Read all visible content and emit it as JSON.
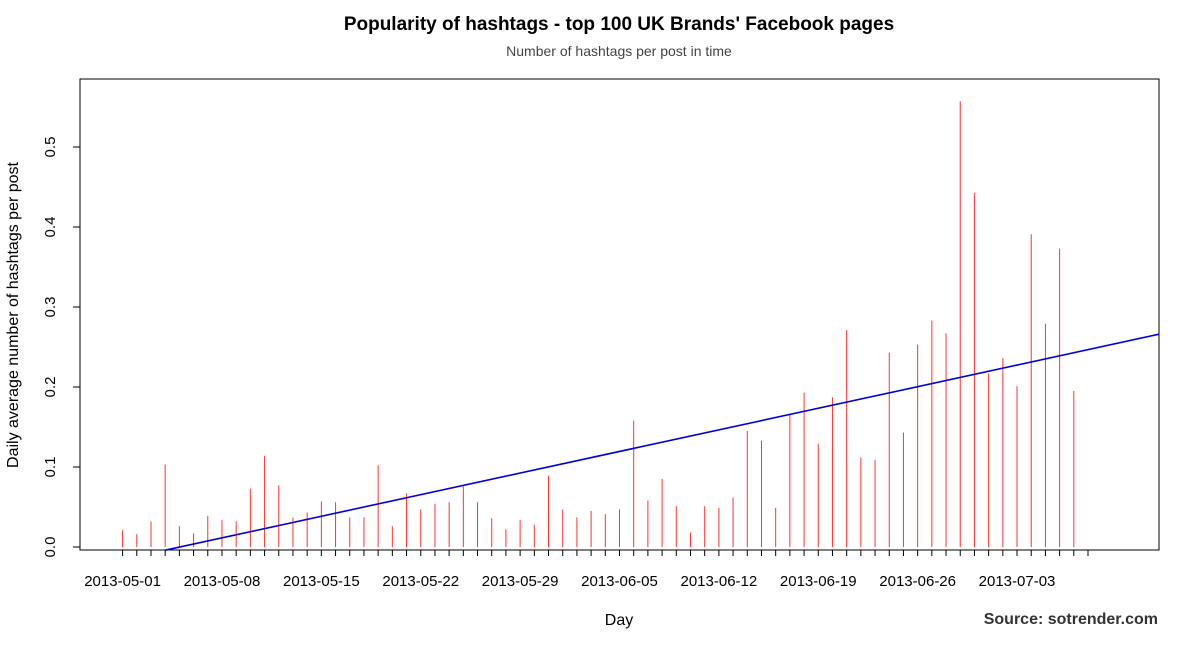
{
  "chart_data": {
    "type": "bar",
    "title": "Popularity of hashtags - top 100 UK Brands' Facebook pages",
    "subtitle": "Number of hashtags per post in time",
    "xlabel": "Day",
    "ylabel": "Daily average number of hashtags per post",
    "source": "Source: sotrender.com",
    "x_tick_labels": [
      "2013-05-01",
      "2013-05-08",
      "2013-05-15",
      "2013-05-22",
      "2013-05-29",
      "2013-06-05",
      "2013-06-12",
      "2013-06-19",
      "2013-06-26",
      "2013-07-03"
    ],
    "y_tick_labels": [
      "0.0",
      "0.1",
      "0.2",
      "0.3",
      "0.4",
      "0.5"
    ],
    "y_ticks": [
      0,
      0.1,
      0.2,
      0.3,
      0.4,
      0.5
    ],
    "ylim": [
      0,
      0.58
    ],
    "xlim": [
      "2013-04-28",
      "2013-07-13"
    ],
    "x": [
      "2013-05-01",
      "2013-05-02",
      "2013-05-03",
      "2013-05-04",
      "2013-05-05",
      "2013-05-06",
      "2013-05-07",
      "2013-05-08",
      "2013-05-09",
      "2013-05-10",
      "2013-05-11",
      "2013-05-12",
      "2013-05-13",
      "2013-05-14",
      "2013-05-15",
      "2013-05-16",
      "2013-05-17",
      "2013-05-18",
      "2013-05-19",
      "2013-05-20",
      "2013-05-21",
      "2013-05-22",
      "2013-05-23",
      "2013-05-24",
      "2013-05-25",
      "2013-05-26",
      "2013-05-27",
      "2013-05-28",
      "2013-05-29",
      "2013-05-30",
      "2013-05-31",
      "2013-06-01",
      "2013-06-02",
      "2013-06-03",
      "2013-06-04",
      "2013-06-05",
      "2013-06-06",
      "2013-06-07",
      "2013-06-08",
      "2013-06-09",
      "2013-06-10",
      "2013-06-11",
      "2013-06-12",
      "2013-06-13",
      "2013-06-14",
      "2013-06-15",
      "2013-06-16",
      "2013-06-17",
      "2013-06-18",
      "2013-06-19",
      "2013-06-20",
      "2013-06-21",
      "2013-06-22",
      "2013-06-23",
      "2013-06-24",
      "2013-06-25",
      "2013-06-26",
      "2013-06-27",
      "2013-06-28",
      "2013-06-29",
      "2013-06-30",
      "2013-07-01",
      "2013-07-02",
      "2013-07-03",
      "2013-07-04",
      "2013-07-05",
      "2013-07-06",
      "2013-07-07",
      "2013-07-08"
    ],
    "series": [
      {
        "type": "bar",
        "color": "#ff3333",
        "values": [
          0.021,
          0.016,
          0.032,
          0.103,
          0.026,
          0.017,
          0.039,
          0.034,
          0.032,
          0.073,
          0.114,
          0.077,
          0.037,
          0.043,
          0.057,
          0.056,
          0.037,
          0.037,
          0.102,
          0.026,
          0.067,
          0.047,
          0.054,
          0.056,
          0.076,
          0.056,
          0.036,
          0.022,
          0.034,
          0.028,
          0.089,
          0.047,
          0.037,
          0.045,
          0.041,
          0.047,
          0.158,
          0.058,
          0.085,
          0.051,
          0.018,
          0.051,
          0.049,
          0.062,
          0.145,
          0.133,
          0.049,
          0.166,
          0.193,
          0.129,
          0.187,
          0.271,
          0.112,
          0.109,
          0.243,
          0.143,
          0.253,
          0.283,
          0.267,
          0.557,
          0.443,
          0.217,
          0.236,
          0.201,
          0.391,
          0.279,
          0.373,
          0.195,
          0.0
        ]
      },
      {
        "type": "line",
        "color": "#0000dd",
        "x": [
          "2013-05-04",
          "2013-07-13"
        ],
        "values": [
          -0.004,
          0.266
        ]
      }
    ]
  }
}
